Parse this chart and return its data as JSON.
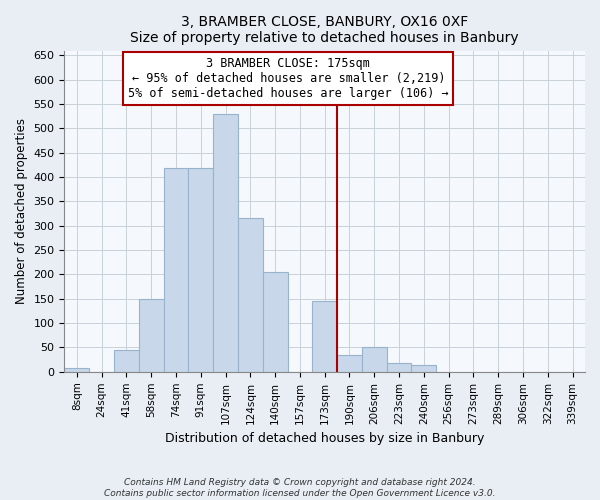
{
  "title": "3, BRAMBER CLOSE, BANBURY, OX16 0XF",
  "subtitle": "Size of property relative to detached houses in Banbury",
  "xlabel": "Distribution of detached houses by size in Banbury",
  "ylabel": "Number of detached properties",
  "bar_labels": [
    "8sqm",
    "24sqm",
    "41sqm",
    "58sqm",
    "74sqm",
    "91sqm",
    "107sqm",
    "124sqm",
    "140sqm",
    "157sqm",
    "173sqm",
    "190sqm",
    "206sqm",
    "223sqm",
    "240sqm",
    "256sqm",
    "273sqm",
    "289sqm",
    "306sqm",
    "322sqm",
    "339sqm"
  ],
  "bar_values": [
    8,
    0,
    45,
    150,
    418,
    418,
    530,
    315,
    205,
    0,
    145,
    35,
    50,
    18,
    15,
    0,
    0,
    0,
    0,
    0,
    0
  ],
  "bar_color": "#c8d8ea",
  "bar_edge_color": "#9ab3cc",
  "ylim": [
    0,
    660
  ],
  "yticks": [
    0,
    50,
    100,
    150,
    200,
    250,
    300,
    350,
    400,
    450,
    500,
    550,
    600,
    650
  ],
  "vline_color": "#aa0000",
  "annotation_title": "3 BRAMBER CLOSE: 175sqm",
  "annotation_line1": "← 95% of detached houses are smaller (2,219)",
  "annotation_line2": "5% of semi-detached houses are larger (106) →",
  "footer_line1": "Contains HM Land Registry data © Crown copyright and database right 2024.",
  "footer_line2": "Contains public sector information licensed under the Open Government Licence v3.0.",
  "bg_color": "#e8eef4",
  "plot_bg_color": "#f5f8fc",
  "grid_color": "#c8d0d8"
}
